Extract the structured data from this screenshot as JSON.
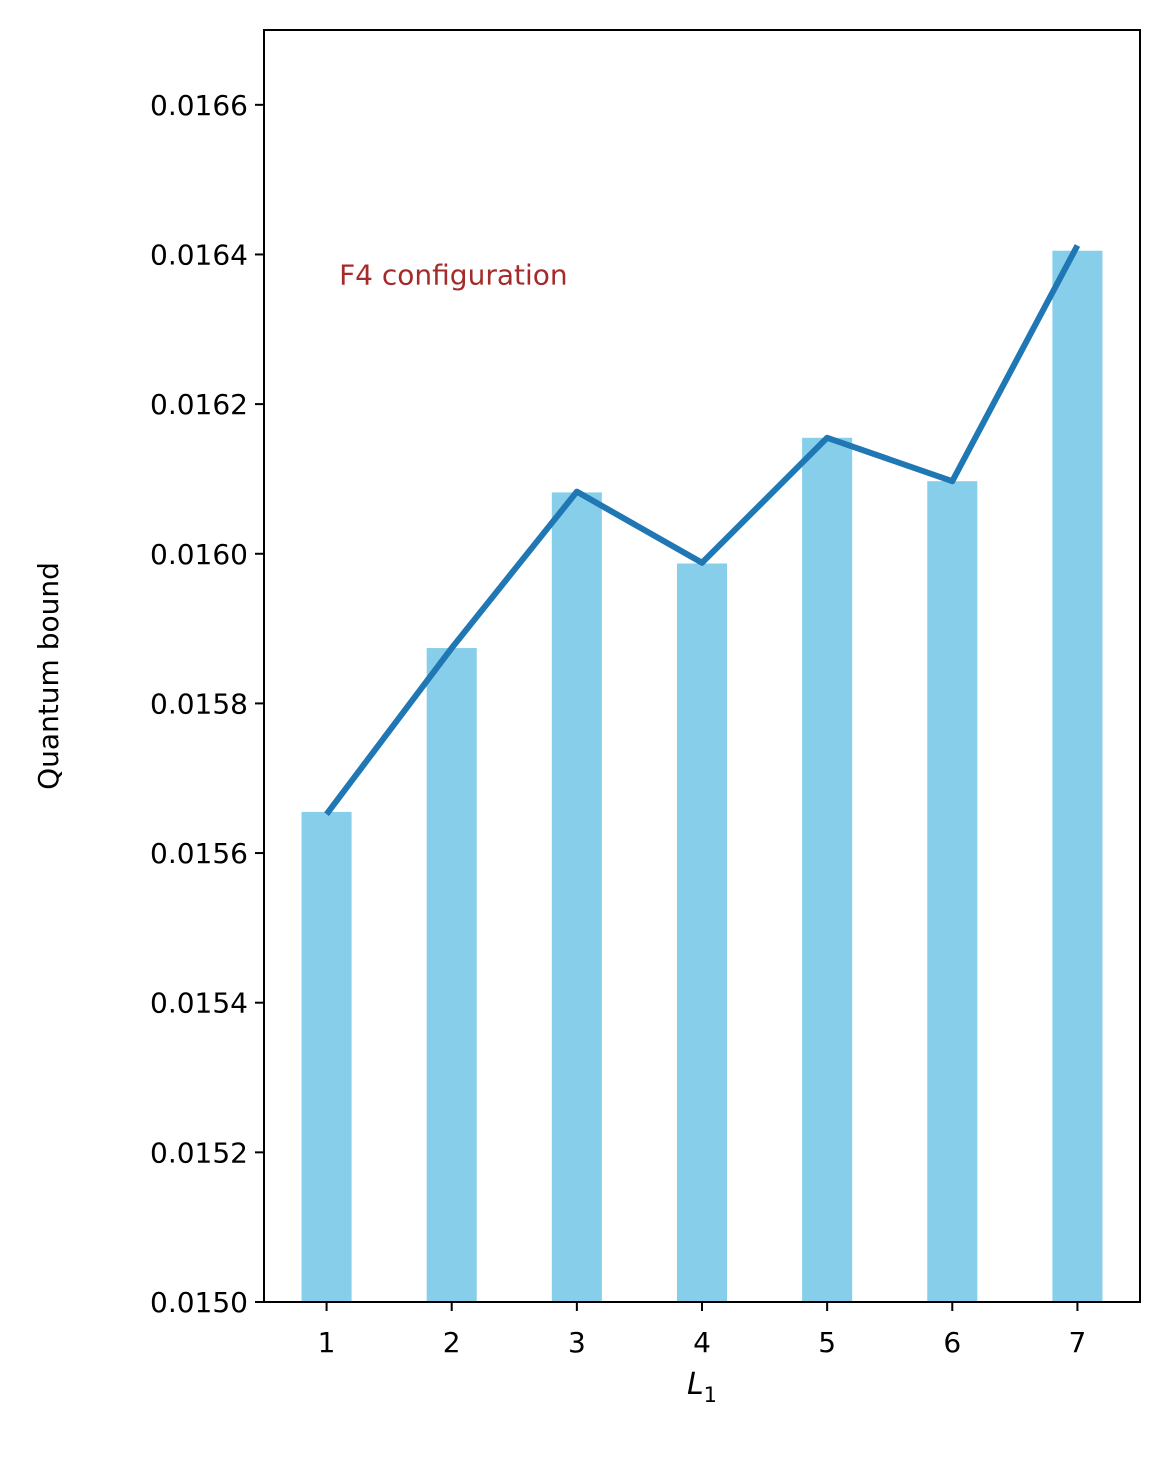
{
  "chart_data": {
    "type": "bar",
    "categories": [
      "1",
      "2",
      "3",
      "4",
      "5",
      "6",
      "7"
    ],
    "series": [
      {
        "kind": "bar",
        "color": "#87CEEB",
        "values": [
          0.015655,
          0.015874,
          0.016082,
          0.015987,
          0.016155,
          0.016097,
          0.016405
        ]
      },
      {
        "kind": "line",
        "color": "#1f77b4",
        "values": [
          0.015652,
          0.015874,
          0.016083,
          0.015988,
          0.016155,
          0.016097,
          0.016412
        ]
      }
    ],
    "annotation": {
      "text": "F4 configuration",
      "color": "#a52a2a",
      "x": 1.1,
      "y": 0.01636
    },
    "xlabel": {
      "main": "L",
      "sub": "1"
    },
    "ylabel": "Quantum bound",
    "ylim": [
      0.015,
      0.0167
    ],
    "xlim": [
      0.5,
      7.5
    ],
    "yticks": [
      0.015,
      0.0152,
      0.0154,
      0.0156,
      0.0158,
      0.016,
      0.0162,
      0.0164,
      0.0166
    ],
    "ytick_labels": [
      "0.0150",
      "0.0152",
      "0.0154",
      "0.0156",
      "0.0158",
      "0.0160",
      "0.0162",
      "0.0164",
      "0.0166"
    ],
    "grid": false,
    "legend": "none"
  }
}
